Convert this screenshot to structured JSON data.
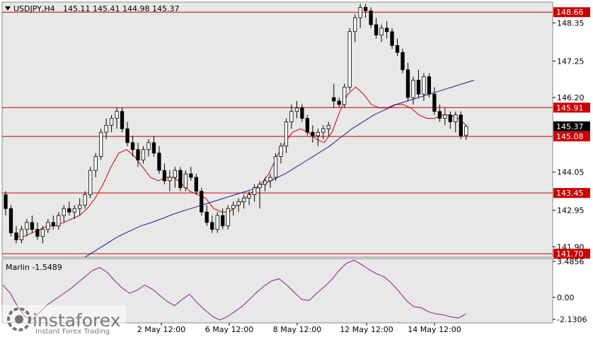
{
  "header": {
    "symbol": "USDJPY,H4",
    "ohlc": "145.11 145.41 144.98 145.37"
  },
  "indicator": {
    "label": "Marlin -1.5489",
    "axis_labels": [
      "3.4856",
      "0.00",
      "-2.1306"
    ]
  },
  "logo": {
    "brand": "instaforex",
    "tagline": "Instant Forex Trading"
  },
  "colors": {
    "background": "#ffffff",
    "plot_bg": "#e8e8e8",
    "bull_candle": "#ffffff",
    "bear_candle": "#000000",
    "level_line": "#cc0000",
    "fast_ma": "#cc0000",
    "slow_ma": "#1a1aa0",
    "marlin": "#8b1a8b",
    "price_tag": "#000000"
  },
  "chart_data": {
    "type": "candlestick",
    "ylim": [
      141.6,
      148.95
    ],
    "y_ticks": [
      "148.35",
      "147.25",
      "146.20",
      "144.05",
      "142.95",
      "141.90"
    ],
    "x_ticks": [
      "2 May 12:00",
      "6 May 12:00",
      "8 May 12:00",
      "12 May 12:00",
      "14 May 12:00"
    ],
    "levels": [
      148.66,
      145.91,
      145.08,
      143.45,
      141.7
    ],
    "level_labels": [
      "148.66",
      "145.91",
      "145.08",
      "143.45",
      "141.70"
    ],
    "current_price": 145.37,
    "current_price_label": "145.37",
    "candles": [
      [
        143.4,
        143.5,
        142.8,
        143.0
      ],
      [
        143.0,
        143.1,
        142.2,
        142.3
      ],
      [
        142.3,
        142.5,
        142.0,
        142.1
      ],
      [
        142.1,
        142.5,
        142.0,
        142.4
      ],
      [
        142.4,
        142.7,
        142.2,
        142.6
      ],
      [
        142.6,
        142.8,
        142.3,
        142.4
      ],
      [
        142.4,
        142.6,
        142.1,
        142.2
      ],
      [
        142.2,
        142.5,
        142.0,
        142.4
      ],
      [
        142.4,
        142.7,
        142.3,
        142.6
      ],
      [
        142.6,
        142.8,
        142.4,
        142.5
      ],
      [
        142.5,
        142.9,
        142.4,
        142.8
      ],
      [
        142.8,
        143.1,
        142.6,
        143.0
      ],
      [
        143.0,
        143.2,
        142.8,
        142.9
      ],
      [
        142.9,
        143.1,
        142.7,
        143.0
      ],
      [
        143.0,
        143.3,
        142.8,
        143.1
      ],
      [
        143.1,
        143.5,
        143.0,
        143.4
      ],
      [
        143.4,
        144.2,
        143.3,
        144.1
      ],
      [
        144.1,
        144.6,
        143.9,
        144.5
      ],
      [
        144.5,
        145.3,
        144.4,
        145.2
      ],
      [
        145.2,
        145.6,
        145.0,
        145.4
      ],
      [
        145.4,
        145.7,
        145.2,
        145.6
      ],
      [
        145.6,
        145.9,
        145.3,
        145.8
      ],
      [
        145.8,
        145.9,
        145.2,
        145.3
      ],
      [
        145.3,
        145.5,
        144.8,
        144.9
      ],
      [
        144.9,
        145.1,
        144.5,
        144.7
      ],
      [
        144.7,
        144.9,
        144.2,
        144.4
      ],
      [
        144.4,
        144.8,
        144.3,
        144.7
      ],
      [
        144.7,
        145.0,
        144.5,
        144.9
      ],
      [
        144.9,
        145.1,
        144.5,
        144.6
      ],
      [
        144.6,
        144.8,
        144.0,
        144.1
      ],
      [
        144.1,
        144.3,
        143.7,
        143.8
      ],
      [
        143.8,
        144.1,
        143.5,
        143.9
      ],
      [
        143.9,
        144.2,
        143.6,
        144.1
      ],
      [
        144.1,
        144.2,
        143.5,
        143.6
      ],
      [
        143.6,
        144.1,
        143.5,
        144.0
      ],
      [
        144.0,
        144.2,
        143.8,
        143.9
      ],
      [
        143.9,
        144.0,
        143.4,
        143.5
      ],
      [
        143.5,
        143.6,
        142.8,
        142.9
      ],
      [
        142.9,
        143.1,
        142.5,
        142.6
      ],
      [
        142.6,
        142.8,
        142.3,
        142.4
      ],
      [
        142.4,
        142.9,
        142.3,
        142.8
      ],
      [
        142.8,
        143.0,
        142.4,
        142.5
      ],
      [
        142.5,
        143.1,
        142.4,
        143.0
      ],
      [
        143.0,
        143.2,
        142.8,
        143.1
      ],
      [
        143.1,
        143.3,
        142.9,
        143.2
      ],
      [
        143.2,
        143.4,
        143.0,
        143.3
      ],
      [
        143.3,
        143.5,
        143.1,
        143.4
      ],
      [
        143.4,
        143.7,
        143.2,
        143.6
      ],
      [
        143.6,
        143.8,
        143.0,
        143.7
      ],
      [
        143.7,
        143.9,
        143.5,
        143.8
      ],
      [
        143.8,
        144.0,
        143.6,
        143.9
      ],
      [
        143.9,
        144.6,
        143.8,
        144.5
      ],
      [
        144.5,
        144.9,
        144.3,
        144.8
      ],
      [
        144.8,
        145.6,
        144.6,
        145.5
      ],
      [
        145.5,
        146.0,
        145.3,
        145.8
      ],
      [
        145.8,
        146.1,
        145.6,
        145.9
      ],
      [
        145.9,
        146.0,
        145.5,
        145.6
      ],
      [
        145.6,
        145.7,
        145.1,
        145.2
      ],
      [
        145.2,
        145.4,
        144.9,
        145.1
      ],
      [
        145.1,
        145.3,
        144.8,
        145.2
      ],
      [
        145.2,
        145.4,
        145.0,
        145.3
      ],
      [
        145.3,
        145.5,
        145.1,
        145.4
      ],
      [
        146.2,
        146.6,
        145.9,
        146.1
      ],
      [
        146.1,
        146.2,
        145.9,
        146.0
      ],
      [
        146.0,
        146.6,
        145.9,
        146.5
      ],
      [
        146.5,
        148.2,
        146.4,
        148.1
      ],
      [
        148.1,
        148.6,
        147.8,
        148.5
      ],
      [
        148.5,
        148.9,
        148.2,
        148.8
      ],
      [
        148.8,
        148.9,
        148.5,
        148.7
      ],
      [
        148.7,
        148.8,
        148.2,
        148.3
      ],
      [
        148.3,
        148.5,
        147.9,
        148.0
      ],
      [
        148.0,
        148.3,
        147.8,
        148.2
      ],
      [
        148.2,
        148.4,
        147.9,
        148.1
      ],
      [
        148.1,
        148.2,
        147.6,
        147.7
      ],
      [
        147.7,
        147.9,
        147.4,
        147.5
      ],
      [
        147.5,
        147.6,
        146.9,
        147.0
      ],
      [
        147.0,
        147.2,
        146.1,
        146.2
      ],
      [
        146.2,
        146.8,
        146.0,
        146.7
      ],
      [
        146.7,
        147.0,
        146.2,
        146.3
      ],
      [
        146.3,
        146.9,
        146.1,
        146.8
      ],
      [
        146.8,
        146.9,
        146.2,
        146.3
      ],
      [
        146.3,
        146.5,
        145.7,
        145.8
      ],
      [
        145.8,
        146.0,
        145.5,
        145.6
      ],
      [
        145.6,
        145.9,
        145.4,
        145.7
      ],
      [
        145.7,
        145.8,
        145.3,
        145.5
      ],
      [
        145.5,
        145.8,
        145.2,
        145.7
      ],
      [
        145.7,
        145.8,
        145.0,
        145.1
      ],
      [
        145.11,
        145.41,
        144.98,
        145.37
      ]
    ],
    "series": [
      {
        "values": [
          142.2,
          142.2,
          142.3,
          142.4,
          142.5,
          142.5,
          142.6,
          142.7,
          142.8,
          143.0,
          143.3,
          143.7,
          144.2,
          144.6,
          144.7,
          144.5,
          144.2,
          143.9,
          143.8,
          143.9,
          143.9,
          143.7,
          143.5,
          143.4,
          143.3,
          143.0,
          142.9,
          142.9,
          143.1,
          143.3,
          143.5,
          143.7,
          144.0,
          144.5,
          144.9,
          145.2,
          145.3,
          145.2,
          145.0,
          144.9,
          145.2,
          145.8,
          146.3,
          146.5,
          146.3,
          146.0,
          145.9,
          145.9,
          146.0,
          146.0,
          145.9,
          145.7,
          145.6,
          145.6,
          145.7,
          145.7,
          145.6,
          145.4
        ]
      },
      {
        "values": [
          141.6,
          141.8,
          142.0,
          142.2,
          142.35,
          142.5,
          142.6,
          142.72,
          142.85,
          142.95,
          143.05,
          143.15,
          143.25,
          143.35,
          143.45,
          143.55,
          143.7,
          143.85,
          144.0,
          144.2,
          144.4,
          144.6,
          144.8,
          145.05,
          145.3,
          145.5,
          145.7,
          145.85,
          146.0,
          146.1,
          146.2,
          146.3,
          146.4,
          146.5,
          146.6,
          146.7
        ]
      }
    ],
    "indicator_values": [
      1.2,
      0.4,
      -0.9,
      -1.9,
      -2.1,
      -1.4,
      -0.7,
      -0.2,
      0.3,
      0.8,
      1.4,
      2.0,
      2.6,
      2.9,
      2.4,
      1.6,
      0.9,
      0.4,
      0.7,
      1.2,
      0.8,
      0.2,
      -0.4,
      -0.8,
      -0.2,
      0.3,
      -0.5,
      -1.2,
      -1.8,
      -2.2,
      -1.9,
      -1.4,
      -0.9,
      -0.2,
      0.5,
      1.1,
      1.6,
      1.8,
      1.2,
      0.5,
      -0.2,
      -0.3,
      0.4,
      1.0,
      1.7,
      2.6,
      3.3,
      3.6,
      3.2,
      2.7,
      2.3,
      2.0,
      1.4,
      0.6,
      -0.3,
      -0.9,
      -1.0,
      -1.4,
      -1.6,
      -1.7,
      -1.9,
      -2.0,
      -1.6
    ]
  }
}
